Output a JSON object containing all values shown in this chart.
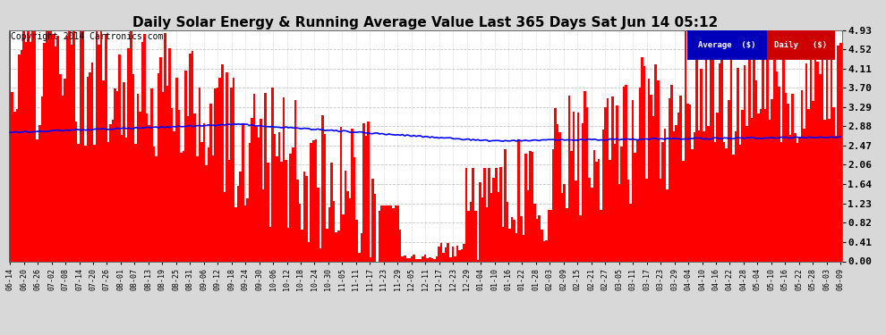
{
  "title": "Daily Solar Energy & Running Average Value Last 365 Days Sat Jun 14 05:12",
  "copyright": "Copyright 2014 Cartronics.com",
  "bar_color": "#ff0000",
  "avg_line_color": "#0000ff",
  "background_color": "#d8d8d8",
  "plot_bg_color": "#ffffff",
  "grid_color": "#aaaaaa",
  "ylim": [
    0,
    4.93
  ],
  "yticks": [
    0.0,
    0.41,
    0.82,
    1.23,
    1.64,
    2.06,
    2.47,
    2.88,
    3.29,
    3.7,
    4.11,
    4.52,
    4.93
  ],
  "legend_avg_color": "#0000bb",
  "legend_daily_color": "#cc0000",
  "legend_avg_text": "Average  ($)",
  "legend_daily_text": "Daily   ($)",
  "title_fontsize": 11,
  "copyright_fontsize": 7,
  "xtick_labels": [
    "06-14",
    "06-20",
    "06-26",
    "07-02",
    "07-08",
    "07-14",
    "07-20",
    "07-26",
    "08-01",
    "08-07",
    "08-13",
    "08-19",
    "08-25",
    "08-31",
    "09-06",
    "09-12",
    "09-18",
    "09-24",
    "09-30",
    "10-06",
    "10-12",
    "10-18",
    "10-24",
    "10-30",
    "11-05",
    "11-11",
    "11-17",
    "11-23",
    "11-29",
    "12-05",
    "12-11",
    "12-17",
    "12-23",
    "12-29",
    "01-04",
    "01-10",
    "01-16",
    "01-22",
    "01-28",
    "02-03",
    "02-09",
    "02-15",
    "02-21",
    "02-27",
    "03-05",
    "03-11",
    "03-17",
    "03-23",
    "03-29",
    "04-04",
    "04-10",
    "04-16",
    "04-22",
    "04-28",
    "05-04",
    "05-10",
    "05-16",
    "05-22",
    "05-28",
    "06-03",
    "06-09"
  ]
}
